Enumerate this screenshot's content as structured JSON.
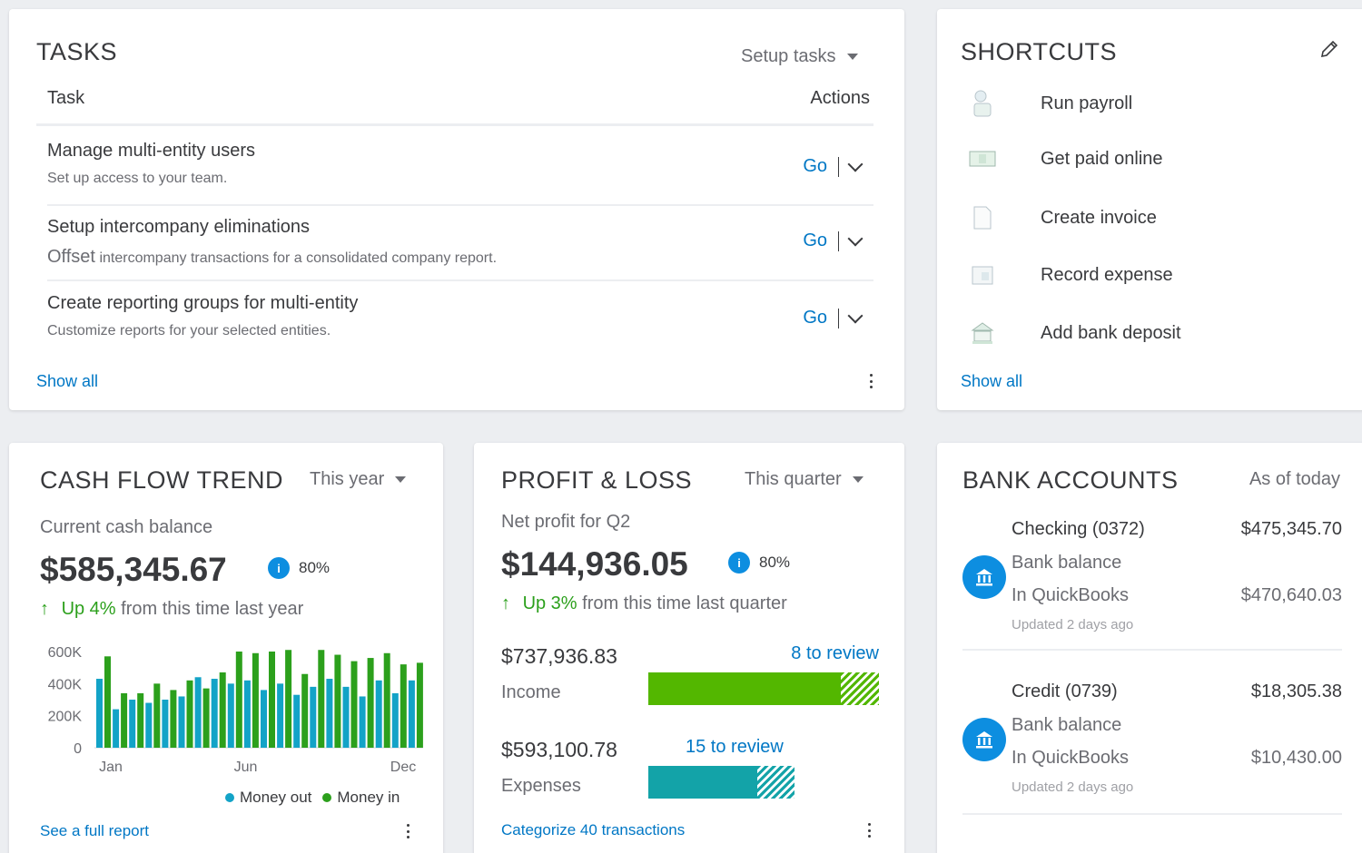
{
  "tasks": {
    "title": "TASKS",
    "dropdown": "Setup tasks",
    "col_task": "Task",
    "col_actions": "Actions",
    "items": [
      {
        "title": "Manage multi-entity users",
        "desc": "Set up access to your team.",
        "action": "Go"
      },
      {
        "title": "Setup intercompany eliminations",
        "desc_lead": "Offset",
        "desc": "intercompany transactions for a consolidated company report.",
        "action": "Go"
      },
      {
        "title": "Create reporting groups for multi-entity",
        "desc": "Customize reports for your selected entities.",
        "action": "Go"
      }
    ],
    "show_all": "Show all"
  },
  "shortcuts": {
    "title": "SHORTCUTS",
    "items": [
      {
        "label": "Run payroll",
        "icon": "payroll-icon"
      },
      {
        "label": "Get paid online",
        "icon": "cash-icon"
      },
      {
        "label": "Create invoice",
        "icon": "invoice-icon"
      },
      {
        "label": "Record expense",
        "icon": "expense-icon"
      },
      {
        "label": "Add bank deposit",
        "icon": "bank-deposit-icon"
      }
    ],
    "show_all": "Show all"
  },
  "cashflow": {
    "title": "CASH FLOW TREND",
    "dropdown": "This year",
    "subtitle": "Current cash balance",
    "amount": "$585,345.67",
    "pct": "80%",
    "trend_up": "Up 4%",
    "trend_rest": "from this time last year",
    "legend_out": "Money out",
    "legend_in": "Money in",
    "footer_link": "See a full report",
    "colors": {
      "money_out": "#13a3c7",
      "money_in": "#2ca01c"
    }
  },
  "chart_data": {
    "type": "bar",
    "y_ticks": [
      "600K",
      "400K",
      "200K",
      "0"
    ],
    "x_labels": [
      "Jan",
      "Jun",
      "Dec"
    ],
    "ylim": [
      0,
      600000
    ],
    "series": [
      {
        "name": "Money out",
        "values": [
          430000,
          240000,
          300000,
          280000,
          300000,
          320000,
          440000,
          430000,
          400000,
          420000,
          360000,
          400000,
          330000,
          380000,
          430000,
          380000,
          320000,
          420000,
          340000,
          420000
        ]
      },
      {
        "name": "Money in",
        "values": [
          570000,
          340000,
          340000,
          400000,
          360000,
          420000,
          370000,
          470000,
          600000,
          590000,
          600000,
          610000,
          460000,
          610000,
          580000,
          540000,
          560000,
          590000,
          520000,
          530000
        ]
      }
    ]
  },
  "pnl": {
    "title": "PROFIT & LOSS",
    "dropdown": "This quarter",
    "subtitle": "Net profit for Q2",
    "amount": "$144,936.05",
    "pct": "80%",
    "trend_up": "Up 3%",
    "trend_rest": "from this time last quarter",
    "income_amount": "$737,936.83",
    "income_label": "Income",
    "income_review": "8 to review",
    "expenses_amount": "$593,100.78",
    "expenses_label": "Expenses",
    "expenses_review": "15 to review",
    "footer_link": "Categorize 40 transactions",
    "colors": {
      "income": "#53b700",
      "expenses": "#13a3a8"
    }
  },
  "bank": {
    "title": "BANK ACCOUNTS",
    "as_of": "As of today",
    "accounts": [
      {
        "name": "Checking (0372)",
        "bank_balance_label": "Bank balance",
        "bank_balance": "$475,345.70",
        "qb_label": "In QuickBooks",
        "qb_balance": "$470,640.03",
        "updated": "Updated 2 days ago"
      },
      {
        "name": "Credit (0739)",
        "bank_balance_label": "Bank balance",
        "bank_balance": "$18,305.38",
        "qb_label": "In QuickBooks",
        "qb_balance": "$10,430.00",
        "updated": "Updated 2 days ago"
      }
    ]
  }
}
